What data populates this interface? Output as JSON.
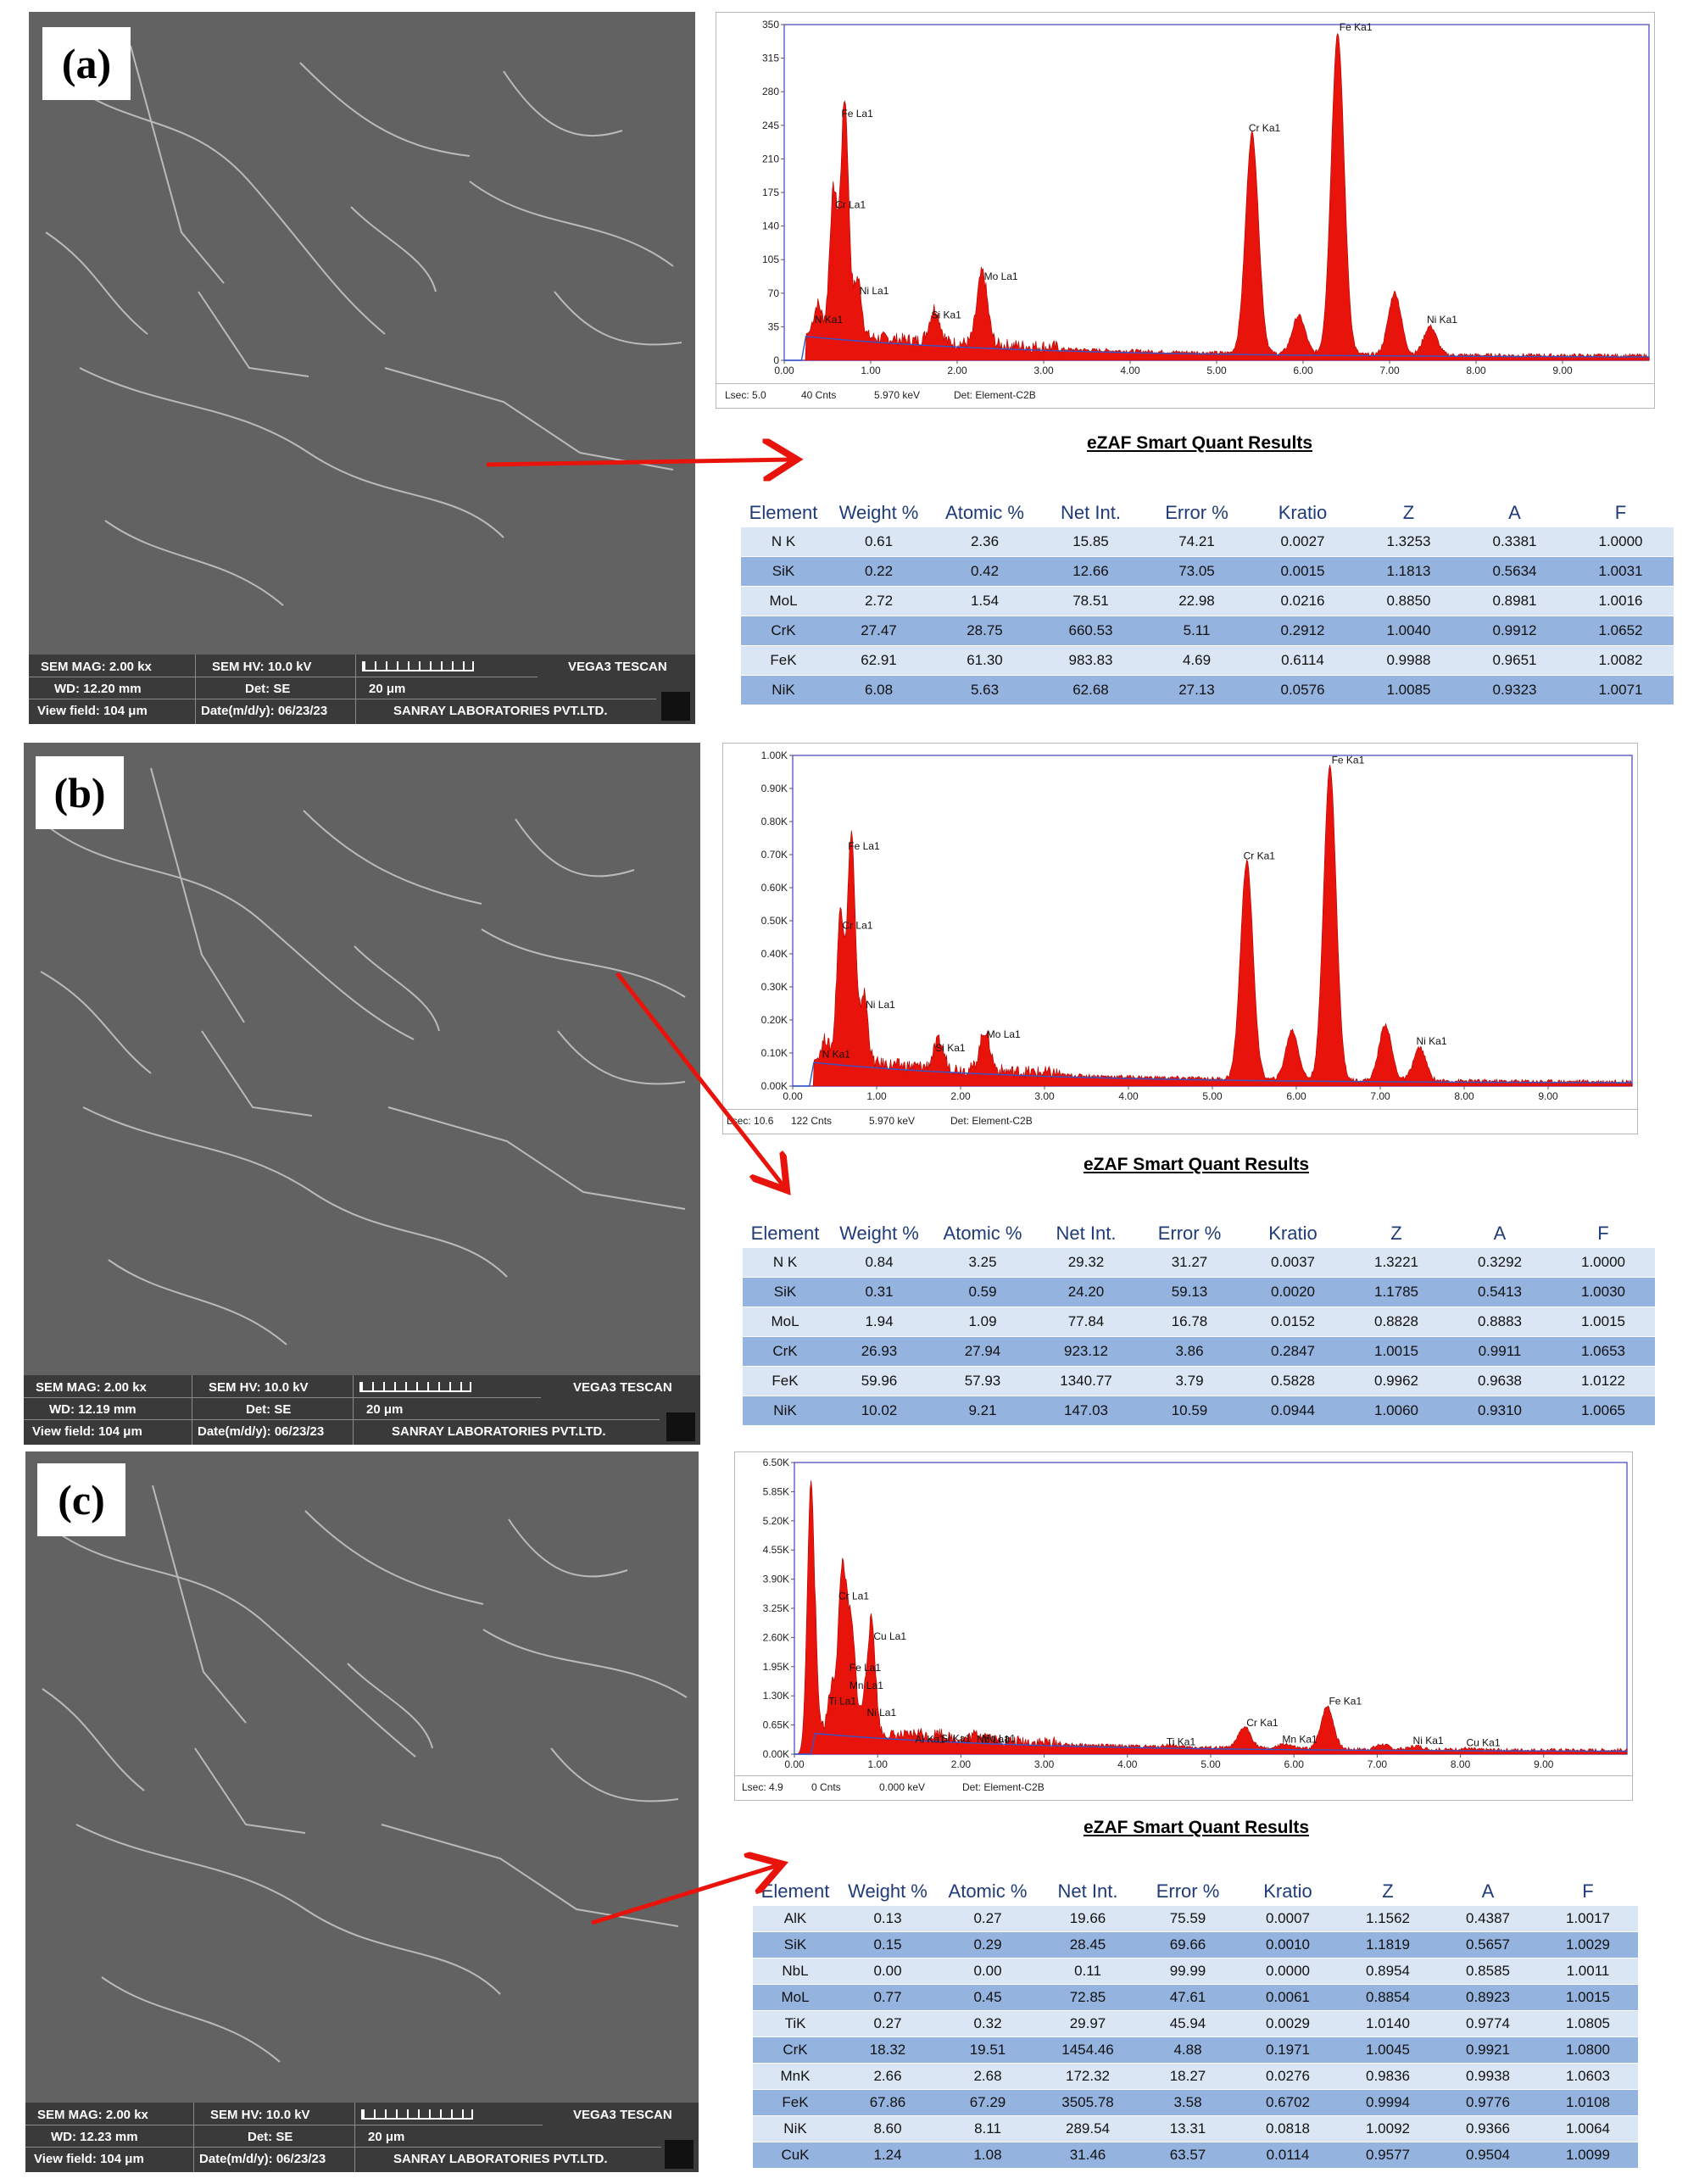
{
  "colors": {
    "peak_fill": "#e8140c",
    "baseline": "#3355cc",
    "plot_border": "#6666cc",
    "arrow": "#e8140c",
    "row_light": "#dbe6f5",
    "row_dark": "#95b3df",
    "header_text": "#1f3b78"
  },
  "quant_title": "eZAF Smart Quant Results",
  "columns": [
    "Element",
    "Weight %",
    "Atomic %",
    "Net Int.",
    "Error %",
    "Kratio",
    "Z",
    "A",
    "F"
  ],
  "panels": [
    {
      "label": "(a)",
      "sem": {
        "mag": "SEM MAG: 2.00 kx",
        "hv": "SEM HV: 10.0 kV",
        "brand": "VEGA3 TESCAN",
        "wd": "WD: 12.20 mm",
        "det": "Det: SE",
        "scale": "20 μm",
        "field": "View field: 104 μm",
        "date": "Date(m/d/y): 06/23/23",
        "lab": "SANRAY LABORATORIES PVT.LTD."
      },
      "footer": {
        "lsec": "Lsec: 5.0",
        "cnts": "40 Cnts",
        "kev": "5.970 keV",
        "det": "Det: Element-C2B"
      },
      "rows": [
        [
          "N K",
          "0.61",
          "2.36",
          "15.85",
          "74.21",
          "0.0027",
          "1.3253",
          "0.3381",
          "1.0000"
        ],
        [
          "SiK",
          "0.22",
          "0.42",
          "12.66",
          "73.05",
          "0.0015",
          "1.1813",
          "0.5634",
          "1.0031"
        ],
        [
          "MoL",
          "2.72",
          "1.54",
          "78.51",
          "22.98",
          "0.0216",
          "0.8850",
          "0.8981",
          "1.0016"
        ],
        [
          "CrK",
          "27.47",
          "28.75",
          "660.53",
          "5.11",
          "0.2912",
          "1.0040",
          "0.9912",
          "1.0652"
        ],
        [
          "FeK",
          "62.91",
          "61.30",
          "983.83",
          "4.69",
          "0.6114",
          "0.9988",
          "0.9651",
          "1.0082"
        ],
        [
          "NiK",
          "6.08",
          "5.63",
          "62.68",
          "27.13",
          "0.0576",
          "1.0085",
          "0.9323",
          "1.0071"
        ]
      ]
    },
    {
      "label": "(b)",
      "sem": {
        "mag": "SEM MAG: 2.00 kx",
        "hv": "SEM HV: 10.0 kV",
        "brand": "VEGA3 TESCAN",
        "wd": "WD: 12.19 mm",
        "det": "Det: SE",
        "scale": "20 μm",
        "field": "View field: 104 μm",
        "date": "Date(m/d/y): 06/23/23",
        "lab": "SANRAY LABORATORIES PVT.LTD."
      },
      "footer": {
        "lsec": "Lsec: 10.6",
        "cnts": "122 Cnts",
        "kev": "5.970 keV",
        "det": "Det: Element-C2B"
      },
      "rows": [
        [
          "N K",
          "0.84",
          "3.25",
          "29.32",
          "31.27",
          "0.0037",
          "1.3221",
          "0.3292",
          "1.0000"
        ],
        [
          "SiK",
          "0.31",
          "0.59",
          "24.20",
          "59.13",
          "0.0020",
          "1.1785",
          "0.5413",
          "1.0030"
        ],
        [
          "MoL",
          "1.94",
          "1.09",
          "77.84",
          "16.78",
          "0.0152",
          "0.8828",
          "0.8883",
          "1.0015"
        ],
        [
          "CrK",
          "26.93",
          "27.94",
          "923.12",
          "3.86",
          "0.2847",
          "1.0015",
          "0.9911",
          "1.0653"
        ],
        [
          "FeK",
          "59.96",
          "57.93",
          "1340.77",
          "3.79",
          "0.5828",
          "0.9962",
          "0.9638",
          "1.0122"
        ],
        [
          "NiK",
          "10.02",
          "9.21",
          "147.03",
          "10.59",
          "0.0944",
          "1.0060",
          "0.9310",
          "1.0065"
        ]
      ]
    },
    {
      "label": "(c)",
      "sem": {
        "mag": "SEM MAG: 2.00 kx",
        "hv": "SEM HV: 10.0 kV",
        "brand": "VEGA3 TESCAN",
        "wd": "WD: 12.23 mm",
        "det": "Det: SE",
        "scale": "20 μm",
        "field": "View field: 104 μm",
        "date": "Date(m/d/y): 06/23/23",
        "lab": "SANRAY LABORATORIES PVT.LTD."
      },
      "footer": {
        "lsec": "Lsec: 4.9",
        "cnts": "0 Cnts",
        "kev": "0.000 keV",
        "det": "Det: Element-C2B"
      },
      "rows": [
        [
          "AlK",
          "0.13",
          "0.27",
          "19.66",
          "75.59",
          "0.0007",
          "1.1562",
          "0.4387",
          "1.0017"
        ],
        [
          "SiK",
          "0.15",
          "0.29",
          "28.45",
          "69.66",
          "0.0010",
          "1.1819",
          "0.5657",
          "1.0029"
        ],
        [
          "NbL",
          "0.00",
          "0.00",
          "0.11",
          "99.99",
          "0.0000",
          "0.8954",
          "0.8585",
          "1.0011"
        ],
        [
          "MoL",
          "0.77",
          "0.45",
          "72.85",
          "47.61",
          "0.0061",
          "0.8854",
          "0.8923",
          "1.0015"
        ],
        [
          "TiK",
          "0.27",
          "0.32",
          "29.97",
          "45.94",
          "0.0029",
          "1.0140",
          "0.9774",
          "1.0805"
        ],
        [
          "CrK",
          "18.32",
          "19.51",
          "1454.46",
          "4.88",
          "0.1971",
          "1.0045",
          "0.9921",
          "1.0800"
        ],
        [
          "MnK",
          "2.66",
          "2.68",
          "172.32",
          "18.27",
          "0.0276",
          "0.9836",
          "0.9938",
          "1.0603"
        ],
        [
          "FeK",
          "67.86",
          "67.29",
          "3505.78",
          "3.58",
          "0.6702",
          "0.9994",
          "0.9776",
          "1.0108"
        ],
        [
          "NiK",
          "8.60",
          "8.11",
          "289.54",
          "13.31",
          "0.0818",
          "1.0092",
          "0.9366",
          "1.0064"
        ],
        [
          "CuK",
          "1.24",
          "1.08",
          "31.46",
          "63.57",
          "0.0114",
          "0.9577",
          "0.9504",
          "1.0099"
        ]
      ]
    }
  ],
  "chart_data": [
    {
      "type": "area",
      "xlabel": "",
      "ylabel": "",
      "xlim": [
        0,
        10
      ],
      "ylim": [
        0,
        350
      ],
      "x_ticks": [
        "0.00",
        "1.00",
        "2.00",
        "3.00",
        "4.00",
        "5.00",
        "6.00",
        "7.00",
        "8.00",
        "9.00"
      ],
      "y_ticks": [
        "0",
        "35",
        "70",
        "105",
        "140",
        "175",
        "210",
        "245",
        "280",
        "315",
        "350"
      ],
      "peaks": [
        {
          "label": "N Ka1",
          "x": 0.39,
          "y": 30
        },
        {
          "label": "Cr La1",
          "x": 0.57,
          "y": 150
        },
        {
          "label": "Fe La1",
          "x": 0.7,
          "y": 245
        },
        {
          "label": "Ni La1",
          "x": 0.85,
          "y": 60
        },
        {
          "label": "Si Ka1",
          "x": 1.74,
          "y": 35
        },
        {
          "label": "Mo La1",
          "x": 2.29,
          "y": 75
        },
        {
          "label": "Cr Ka1",
          "x": 5.41,
          "y": 230
        },
        {
          "label": "Fe Ka1",
          "x": 6.4,
          "y": 335
        },
        {
          "label": "Ni Ka1",
          "x": 7.47,
          "y": 30
        }
      ],
      "extra_peaks": [
        {
          "x": 5.95,
          "y": 40
        },
        {
          "x": 7.06,
          "y": 65
        }
      ]
    },
    {
      "type": "area",
      "xlabel": "",
      "ylabel": "",
      "xlim": [
        0,
        10
      ],
      "ylim": [
        0,
        1000
      ],
      "x_ticks": [
        "0.00",
        "1.00",
        "2.00",
        "3.00",
        "4.00",
        "5.00",
        "6.00",
        "7.00",
        "8.00",
        "9.00"
      ],
      "y_ticks": [
        "0.00K",
        "0.10K",
        "0.20K",
        "0.30K",
        "0.40K",
        "0.50K",
        "0.60K",
        "0.70K",
        "0.80K",
        "0.90K",
        "1.00K"
      ],
      "peaks": [
        {
          "label": "N Ka1",
          "x": 0.39,
          "y": 60
        },
        {
          "label": "Cr La1",
          "x": 0.57,
          "y": 450
        },
        {
          "label": "Fe La1",
          "x": 0.7,
          "y": 690
        },
        {
          "label": "Ni La1",
          "x": 0.85,
          "y": 210
        },
        {
          "label": "Si Ka1",
          "x": 1.74,
          "y": 80
        },
        {
          "label": "Mo La1",
          "x": 2.29,
          "y": 120
        },
        {
          "label": "Cr Ka1",
          "x": 5.41,
          "y": 660
        },
        {
          "label": "Fe Ka1",
          "x": 6.4,
          "y": 950
        },
        {
          "label": "Ni Ka1",
          "x": 7.47,
          "y": 100
        }
      ],
      "extra_peaks": [
        {
          "x": 5.95,
          "y": 150
        },
        {
          "x": 7.06,
          "y": 170
        }
      ]
    },
    {
      "type": "area",
      "xlabel": "",
      "ylabel": "",
      "xlim": [
        0,
        10
      ],
      "ylim": [
        0,
        6500
      ],
      "x_ticks": [
        "0.00",
        "1.00",
        "2.00",
        "3.00",
        "4.00",
        "5.00",
        "6.00",
        "7.00",
        "8.00",
        "9.00"
      ],
      "y_ticks": [
        "0.00K",
        "0.65K",
        "1.30K",
        "1.95K",
        "2.60K",
        "3.25K",
        "3.90K",
        "4.55K",
        "5.20K",
        "5.85K",
        "6.50K"
      ],
      "main_peak": {
        "x": 0.2,
        "y": 6100
      },
      "peaks": [
        {
          "label": "Cr La1",
          "x": 0.57,
          "y": 3300
        },
        {
          "label": "Cu La1",
          "x": 0.93,
          "y": 2400
        },
        {
          "label": "Fe La1",
          "x": 0.7,
          "y": 1700
        },
        {
          "label": "Mn La1",
          "x": 0.64,
          "y": 1300
        },
        {
          "label": "Ti La1",
          "x": 0.45,
          "y": 950
        },
        {
          "label": "Ni La1",
          "x": 0.85,
          "y": 700
        },
        {
          "label": "Al Ka1",
          "x": 1.49,
          "y": 100
        },
        {
          "label": "Si Ka1",
          "x": 1.74,
          "y": 120
        },
        {
          "label": "Mo La1",
          "x": 2.29,
          "y": 120
        },
        {
          "label": "Nb La1",
          "x": 2.17,
          "y": 100
        },
        {
          "label": "Ti Ka1",
          "x": 4.51,
          "y": 50
        },
        {
          "label": "Cr Ka1",
          "x": 5.41,
          "y": 470
        },
        {
          "label": "Mn Ka1",
          "x": 5.9,
          "y": 100
        },
        {
          "label": "Fe Ka1",
          "x": 6.4,
          "y": 950
        },
        {
          "label": "Ni Ka1",
          "x": 7.47,
          "y": 80
        },
        {
          "label": "Cu Ka1",
          "x": 8.05,
          "y": 30
        }
      ],
      "extra_peaks": [
        {
          "x": 7.06,
          "y": 110
        }
      ]
    }
  ]
}
